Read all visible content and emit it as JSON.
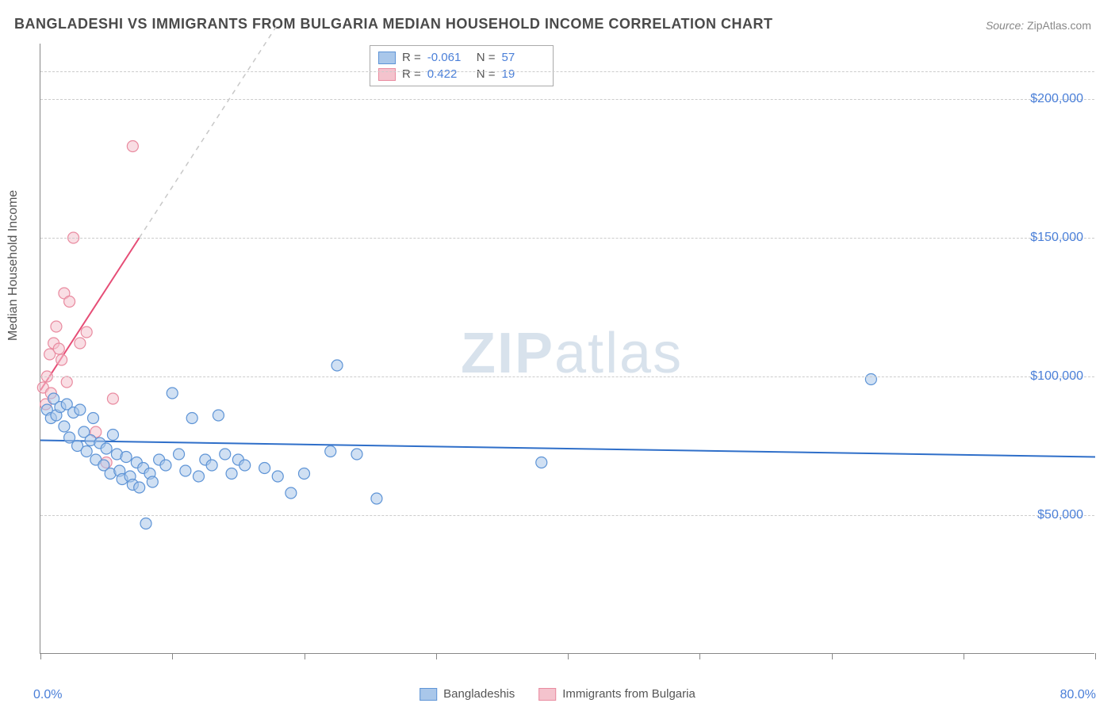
{
  "title": "BANGLADESHI VS IMMIGRANTS FROM BULGARIA MEDIAN HOUSEHOLD INCOME CORRELATION CHART",
  "source_label": "Source:",
  "source_value": "ZipAtlas.com",
  "y_axis_label": "Median Household Income",
  "watermark_zip": "ZIP",
  "watermark_atlas": "atlas",
  "chart": {
    "type": "scatter",
    "background_color": "#ffffff",
    "grid_color": "#cccccc",
    "axis_color": "#888888",
    "xlim": [
      0,
      80
    ],
    "ylim": [
      0,
      220000
    ],
    "x_min_label": "0.0%",
    "x_max_label": "80.0%",
    "y_ticks": [
      50000,
      100000,
      150000,
      200000
    ],
    "y_tick_labels": [
      "$50,000",
      "$100,000",
      "$150,000",
      "$200,000"
    ],
    "y_gridlines": [
      50000,
      100000,
      150000,
      200000,
      210000
    ],
    "x_ticks": [
      0,
      10,
      20,
      30,
      40,
      50,
      60,
      70,
      80
    ],
    "marker_radius": 7,
    "marker_stroke_width": 1.2,
    "trend_line_width": 2,
    "trend_dash_width": 1.5
  },
  "series": [
    {
      "key": "bangladeshis",
      "label": "Bangladeshis",
      "color_fill": "#a9c7ea",
      "color_stroke": "#5e94d6",
      "trend_color": "#2f6fc9",
      "r_value": "-0.061",
      "n_value": "57",
      "trend": {
        "x1": 0,
        "y1": 77000,
        "x2": 80,
        "y2": 71000
      },
      "points": [
        [
          0.5,
          88000
        ],
        [
          0.8,
          85000
        ],
        [
          1.0,
          92000
        ],
        [
          1.2,
          86000
        ],
        [
          1.5,
          89000
        ],
        [
          1.8,
          82000
        ],
        [
          2.0,
          90000
        ],
        [
          2.2,
          78000
        ],
        [
          2.5,
          87000
        ],
        [
          2.8,
          75000
        ],
        [
          3.0,
          88000
        ],
        [
          3.3,
          80000
        ],
        [
          3.5,
          73000
        ],
        [
          3.8,
          77000
        ],
        [
          4.0,
          85000
        ],
        [
          4.2,
          70000
        ],
        [
          4.5,
          76000
        ],
        [
          4.8,
          68000
        ],
        [
          5.0,
          74000
        ],
        [
          5.3,
          65000
        ],
        [
          5.5,
          79000
        ],
        [
          5.8,
          72000
        ],
        [
          6.0,
          66000
        ],
        [
          6.2,
          63000
        ],
        [
          6.5,
          71000
        ],
        [
          6.8,
          64000
        ],
        [
          7.0,
          61000
        ],
        [
          7.3,
          69000
        ],
        [
          7.5,
          60000
        ],
        [
          7.8,
          67000
        ],
        [
          8.0,
          47000
        ],
        [
          8.3,
          65000
        ],
        [
          8.5,
          62000
        ],
        [
          9.0,
          70000
        ],
        [
          9.5,
          68000
        ],
        [
          10.0,
          94000
        ],
        [
          10.5,
          72000
        ],
        [
          11.0,
          66000
        ],
        [
          11.5,
          85000
        ],
        [
          12.0,
          64000
        ],
        [
          12.5,
          70000
        ],
        [
          13.0,
          68000
        ],
        [
          13.5,
          86000
        ],
        [
          14.0,
          72000
        ],
        [
          14.5,
          65000
        ],
        [
          15.0,
          70000
        ],
        [
          15.5,
          68000
        ],
        [
          17.0,
          67000
        ],
        [
          18.0,
          64000
        ],
        [
          19.0,
          58000
        ],
        [
          20.0,
          65000
        ],
        [
          22.0,
          73000
        ],
        [
          22.5,
          104000
        ],
        [
          24.0,
          72000
        ],
        [
          25.5,
          56000
        ],
        [
          38.0,
          69000
        ],
        [
          63.0,
          99000
        ]
      ]
    },
    {
      "key": "bulgaria",
      "label": "Immigrants from Bulgaria",
      "color_fill": "#f4c3cd",
      "color_stroke": "#e98ba0",
      "trend_color": "#e64d76",
      "r_value": "0.422",
      "n_value": "19",
      "trend_solid": {
        "x1": 0,
        "y1": 95000,
        "x2": 7.5,
        "y2": 150000
      },
      "trend_dashed": {
        "x1": 7.5,
        "y1": 150000,
        "x2": 18,
        "y2": 227000
      },
      "points": [
        [
          0.2,
          96000
        ],
        [
          0.4,
          90000
        ],
        [
          0.5,
          100000
        ],
        [
          0.7,
          108000
        ],
        [
          0.8,
          94000
        ],
        [
          1.0,
          112000
        ],
        [
          1.2,
          118000
        ],
        [
          1.4,
          110000
        ],
        [
          1.6,
          106000
        ],
        [
          1.8,
          130000
        ],
        [
          2.0,
          98000
        ],
        [
          2.2,
          127000
        ],
        [
          2.5,
          150000
        ],
        [
          3.0,
          112000
        ],
        [
          3.5,
          116000
        ],
        [
          4.2,
          80000
        ],
        [
          5.0,
          69000
        ],
        [
          5.5,
          92000
        ],
        [
          7.0,
          183000
        ]
      ]
    }
  ],
  "legend_top": {
    "r_label": "R =",
    "n_label": "N ="
  }
}
